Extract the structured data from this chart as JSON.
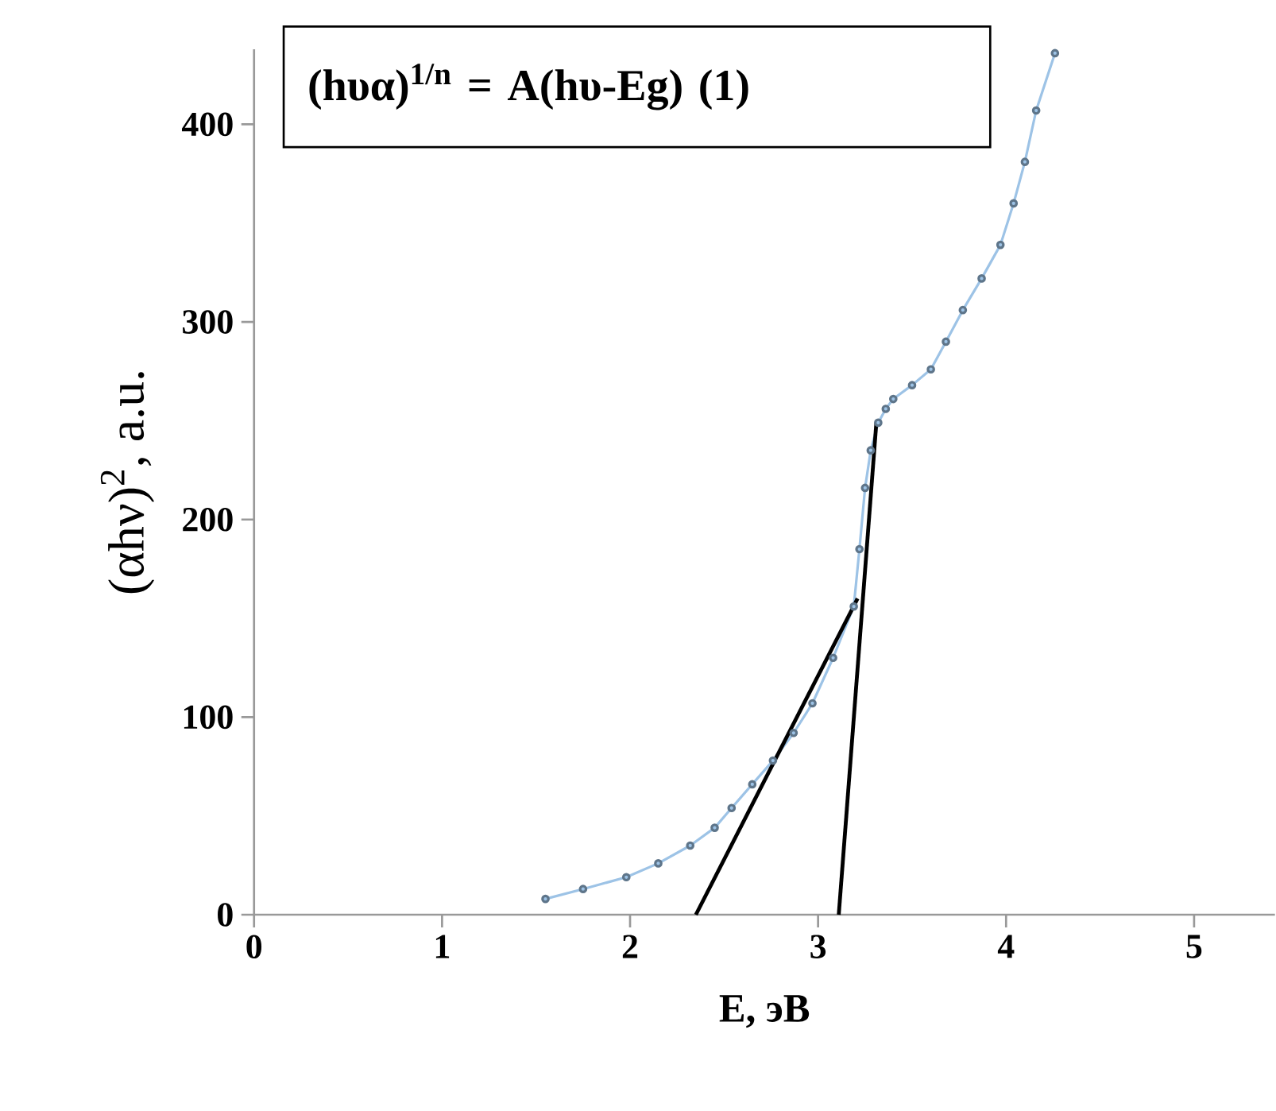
{
  "chart_data": {
    "type": "line",
    "xlabel": "E, эВ",
    "ylabel": "(αhν)$^{2}$, a.u.",
    "annotations": [
      "(hυα)$^{1/n}$ = A(hυ-Eg) (1)"
    ],
    "xlim": [
      0,
      5.43
    ],
    "ylim": [
      0,
      438
    ],
    "xticks": [
      0,
      1,
      2,
      3,
      4,
      5
    ],
    "yticks": [
      0,
      100,
      200,
      300,
      400
    ],
    "marker": "circle",
    "line_style": "solid",
    "series": [
      {
        "color": "#9dc3e6",
        "x": [
          1.55,
          1.75,
          1.98,
          2.15,
          2.32,
          2.45,
          2.54,
          2.65,
          2.76,
          2.87,
          2.97,
          3.08,
          3.19,
          3.22,
          3.25,
          3.28,
          3.32,
          3.36,
          3.4,
          3.5,
          3.6,
          3.68,
          3.77,
          3.87,
          3.97,
          4.04,
          4.1,
          4.16,
          4.26
        ],
        "values": [
          8,
          13,
          19,
          26,
          35,
          44,
          54,
          66,
          78,
          92,
          107,
          130,
          156,
          185,
          216,
          235,
          249,
          256,
          261,
          268,
          276,
          290,
          306,
          322,
          339,
          360,
          381,
          407,
          436
        ]
      },
      {
        "type": "line",
        "marker": "none",
        "color": "#000000",
        "x": [
          2.35,
          3.21
        ],
        "values": [
          0,
          160
        ]
      },
      {
        "type": "line",
        "marker": "none",
        "color": "#000000",
        "x": [
          3.11,
          3.31
        ],
        "values": [
          0,
          249
        ]
      }
    ]
  }
}
